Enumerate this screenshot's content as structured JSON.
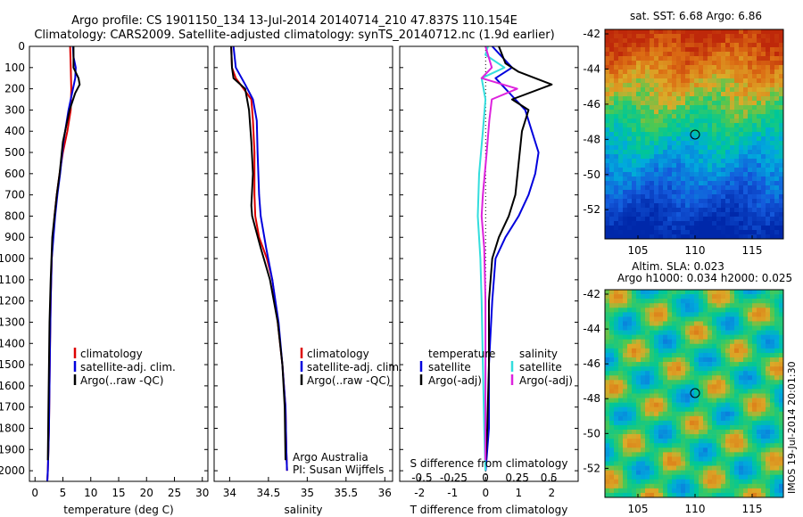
{
  "title_line1": "Argo profile: CS 1901150_134 13-Jul-2014 20140714_210 47.837S 110.154E",
  "title_line2": "Climatology: CARS2009. Satellite-adjusted climatology: synTS_20140712.nc (1.9d earlier)",
  "colors": {
    "climatology": "#dd0000",
    "satellite": "#0000dd",
    "argo": "#000000",
    "salinity_satellite": "#33dddd",
    "salinity_argo": "#dd22dd"
  },
  "depth_ticks": [
    0,
    100,
    200,
    300,
    400,
    500,
    600,
    700,
    800,
    900,
    1000,
    1100,
    1200,
    1300,
    1400,
    1500,
    1600,
    1700,
    1800,
    1900,
    2000
  ],
  "legend": {
    "climatology": "climatology",
    "satellite_clim": "satellite-adj. clim.",
    "argo": "Argo(..raw -QC)"
  },
  "diff_legend": {
    "temperature_head": "temperature",
    "salinity_head": "salinity",
    "satellite": "satellite",
    "argo_adj": "Argo(-adj)"
  },
  "credits": {
    "line1": "Argo Australia",
    "line2": "PI: Susan Wijffels"
  },
  "sst_map": {
    "title": "sat. SST: 6.68  Argo: 6.86",
    "lon_ticks": [
      "105",
      "110",
      "115"
    ],
    "lat_ticks": [
      "-42",
      "-44",
      "-46",
      "-48",
      "-50",
      "-52"
    ]
  },
  "sla_map": {
    "title1": "Altim. SLA: 0.023",
    "title2": "Argo h1000: 0.034 h2000: 0.025",
    "lon_ticks": [
      "105",
      "110",
      "115"
    ],
    "lat_ticks": [
      "-42",
      "-44",
      "-46",
      "-48",
      "-50",
      "-52"
    ],
    "watermark": "IMOS 19-Jul-2014 20:01:30"
  },
  "chart_data": [
    {
      "type": "line",
      "xlabel": "temperature (deg C)",
      "ylabel": "",
      "xlim": [
        -1,
        31
      ],
      "ylim": [
        2050,
        0
      ],
      "x_ticks": [
        0,
        5,
        10,
        15,
        20,
        25,
        30
      ],
      "series": [
        {
          "name": "climatology",
          "x": [
            6.3,
            6.4,
            6.5,
            6.4,
            5.8,
            5.0,
            4.4,
            3.9,
            3.5,
            3.2,
            3.0,
            2.8,
            2.7,
            2.6,
            2.5,
            2.4,
            2.3,
            2.2
          ],
          "y": [
            0,
            100,
            200,
            300,
            400,
            500,
            600,
            700,
            800,
            900,
            1000,
            1200,
            1400,
            1600,
            1800,
            1900,
            2000,
            2050
          ]
        },
        {
          "name": "satellite-adj. clim.",
          "x": [
            6.8,
            6.9,
            7.3,
            7.2,
            6.0,
            5.1,
            4.5,
            4.0,
            3.6,
            3.3,
            3.0,
            2.8,
            2.7,
            2.6,
            2.5,
            2.4,
            2.3,
            2.2
          ],
          "y": [
            0,
            50,
            100,
            150,
            300,
            450,
            600,
            700,
            800,
            900,
            1000,
            1200,
            1400,
            1600,
            1800,
            1900,
            2000,
            2050
          ]
        },
        {
          "name": "Argo(..raw -QC)",
          "x": [
            6.9,
            6.9,
            7.8,
            8.0,
            7.2,
            6.2,
            5.0,
            4.4,
            3.9,
            3.5,
            3.1,
            2.8,
            2.6,
            2.5,
            2.4,
            2.3
          ],
          "y": [
            0,
            100,
            150,
            180,
            220,
            300,
            450,
            600,
            700,
            800,
            900,
            1100,
            1300,
            1500,
            1700,
            1950
          ]
        }
      ]
    },
    {
      "type": "line",
      "xlabel": "salinity",
      "ylabel": "",
      "xlim": [
        33.8,
        36.1
      ],
      "ylim": [
        2050,
        0
      ],
      "x_ticks": [
        34,
        34.5,
        35,
        35.5,
        36
      ],
      "series": [
        {
          "name": "climatology",
          "x": [
            34.02,
            34.03,
            34.08,
            34.28,
            34.3,
            34.32,
            34.32,
            34.33,
            34.38,
            34.48,
            34.55,
            34.62,
            34.68,
            34.72,
            34.73,
            34.74
          ],
          "y": [
            0,
            100,
            150,
            250,
            350,
            500,
            700,
            800,
            900,
            1000,
            1100,
            1300,
            1500,
            1700,
            1900,
            2000
          ]
        },
        {
          "name": "satellite-adj. clim.",
          "x": [
            34.05,
            34.08,
            34.2,
            34.3,
            34.35,
            34.36,
            34.38,
            34.4,
            34.47,
            34.55,
            34.63,
            34.68,
            34.72,
            34.73,
            34.74
          ],
          "y": [
            0,
            100,
            180,
            250,
            350,
            500,
            700,
            800,
            950,
            1100,
            1300,
            1500,
            1700,
            1900,
            2000
          ]
        },
        {
          "name": "Argo(..raw -QC)",
          "x": [
            34.02,
            34.03,
            34.05,
            34.2,
            34.25,
            34.28,
            34.3,
            34.28,
            34.29,
            34.4,
            34.52,
            34.62,
            34.68,
            34.71,
            34.72
          ],
          "y": [
            0,
            100,
            150,
            200,
            300,
            450,
            600,
            750,
            800,
            950,
            1100,
            1300,
            1500,
            1700,
            1950
          ]
        }
      ]
    },
    {
      "type": "line",
      "xlabel": "T difference from climatology",
      "ylabel": "",
      "xlim": [
        -2.6,
        2.8
      ],
      "ylim": [
        2050,
        0
      ],
      "x_ticks": [
        -2,
        -1,
        0,
        1,
        2
      ],
      "x2label": "S difference from climatology",
      "x2_ticks": [
        -0.5,
        -0.25,
        0,
        0.25,
        0.5
      ],
      "x2_tick_labels": [
        "-0.5",
        "-0.25",
        "0",
        "0.25",
        "0.5"
      ],
      "series": [
        {
          "name": "temperature satellite",
          "x": [
            0.2,
            0.5,
            0.8,
            0.3,
            0.6,
            0.9,
            1.2,
            1.4,
            1.6,
            1.5,
            1.3,
            1.0,
            0.6,
            0.3,
            0.2,
            0.1,
            0.1,
            0.0
          ],
          "y": [
            0,
            50,
            100,
            150,
            200,
            250,
            300,
            400,
            500,
            600,
            700,
            800,
            900,
            1000,
            1200,
            1500,
            1800,
            2000
          ]
        },
        {
          "name": "temperature Argo(-adj)",
          "x": [
            0.4,
            0.6,
            1.0,
            2.0,
            0.8,
            1.3,
            1.1,
            1.0,
            0.9,
            0.7,
            0.4,
            0.2,
            0.1,
            0.1,
            0.05,
            0.0
          ],
          "y": [
            0,
            80,
            120,
            180,
            250,
            300,
            400,
            550,
            700,
            800,
            900,
            1000,
            1200,
            1500,
            1800,
            1950
          ]
        },
        {
          "name": "salinity satellite",
          "x": [
            0.02,
            0.0,
            0.15,
            -0.03,
            0.0,
            -0.02,
            -0.05,
            -0.06,
            -0.04,
            -0.03,
            -0.02,
            -0.01,
            0.0
          ],
          "y": [
            0,
            40,
            100,
            150,
            250,
            400,
            600,
            800,
            1000,
            1200,
            1500,
            1800,
            2000
          ]
        },
        {
          "name": "salinity Argo(-adj)",
          "x": [
            0.0,
            0.05,
            -0.03,
            0.25,
            0.05,
            0.03,
            0.01,
            -0.02,
            -0.03,
            -0.01,
            0.0,
            0.0,
            0.0
          ],
          "y": [
            0,
            100,
            150,
            200,
            250,
            350,
            500,
            700,
            800,
            950,
            1200,
            1600,
            1950
          ]
        }
      ]
    }
  ]
}
